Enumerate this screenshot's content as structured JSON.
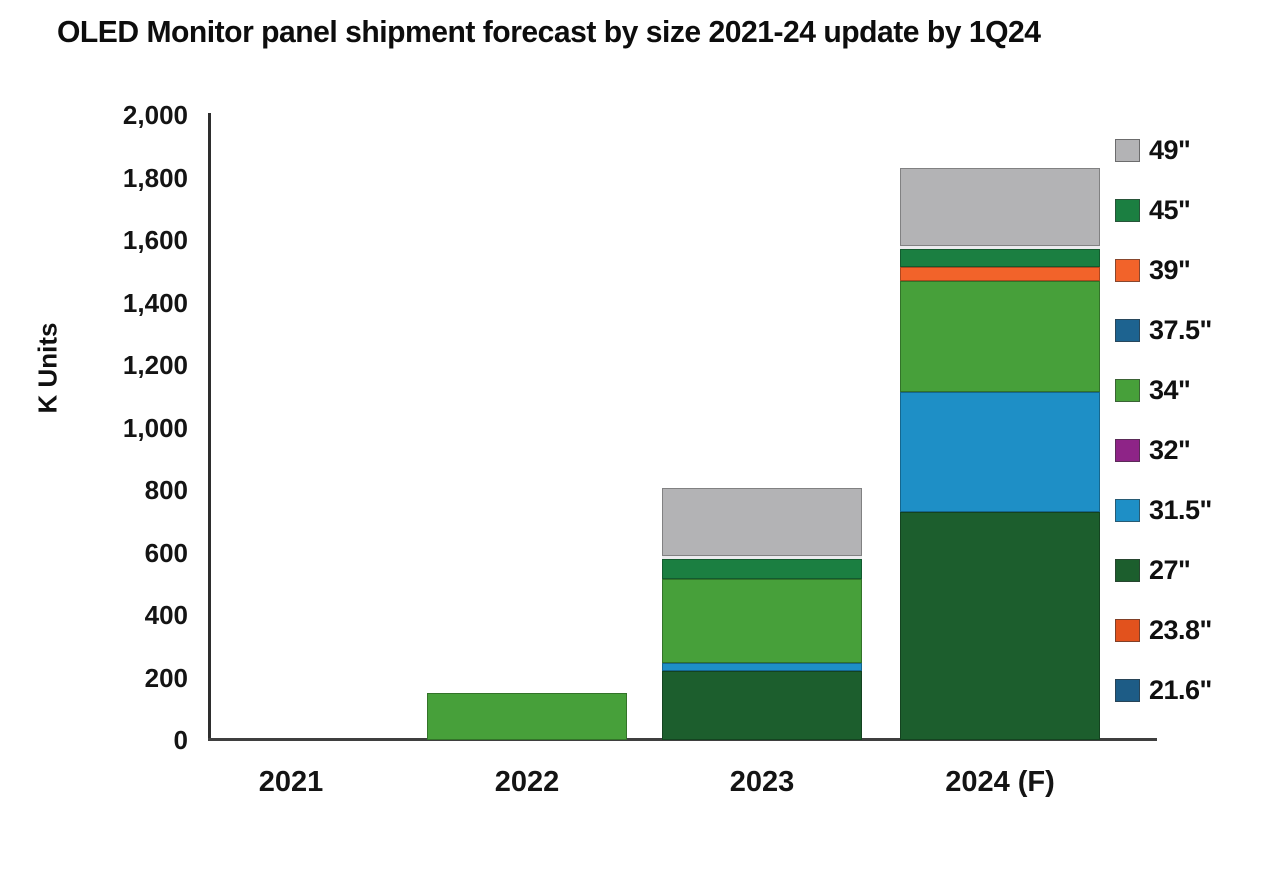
{
  "chart_data": {
    "type": "bar",
    "stacked": true,
    "title": "OLED Monitor panel shipment forecast by size 2021-24 update by 1Q24",
    "xlabel": "",
    "ylabel": "K Units",
    "categories": [
      "2021",
      "2022",
      "2023",
      "2024 (F)"
    ],
    "ylim": [
      0,
      2000
    ],
    "ytick_step": 200,
    "ytick_labels": [
      "0",
      "200",
      "400",
      "600",
      "800",
      "1,000",
      "1,200",
      "1,400",
      "1,600",
      "1,800",
      "2,000"
    ],
    "grid": false,
    "legend_position": "right",
    "legend_order_top_to_bottom": [
      "49\"",
      "45\"",
      "39\"",
      "37.5\"",
      "34\"",
      "32\"",
      "31.5\"",
      "27\"",
      "23.8\"",
      "21.6\""
    ],
    "series": [
      {
        "name": "21.6\"",
        "color": "#1d5c86",
        "values": [
          0,
          0,
          0,
          0
        ]
      },
      {
        "name": "23.8\"",
        "color": "#e2521d",
        "values": [
          0,
          0,
          0,
          0
        ]
      },
      {
        "name": "27\"",
        "color": "#1c5e2d",
        "values": [
          0,
          0,
          220,
          730
        ]
      },
      {
        "name": "31.5\"",
        "color": "#1e8fc6",
        "values": [
          0,
          0,
          25,
          385
        ]
      },
      {
        "name": "32\"",
        "color": "#8e2487",
        "values": [
          0,
          0,
          0,
          0
        ]
      },
      {
        "name": "34\"",
        "color": "#47a03a",
        "values": [
          0,
          150,
          270,
          355
        ]
      },
      {
        "name": "37.5\"",
        "color": "#1d6390",
        "values": [
          0,
          0,
          0,
          0
        ]
      },
      {
        "name": "39\"",
        "color": "#f2632a",
        "values": [
          0,
          0,
          0,
          45
        ]
      },
      {
        "name": "45\"",
        "color": "#1b7f41",
        "values": [
          0,
          0,
          65,
          55
        ]
      },
      {
        "name": "49\"",
        "color": "#b3b3b5",
        "values": [
          0,
          0,
          225,
          260
        ]
      }
    ],
    "totals": [
      0,
      150,
      805,
      1830
    ]
  }
}
